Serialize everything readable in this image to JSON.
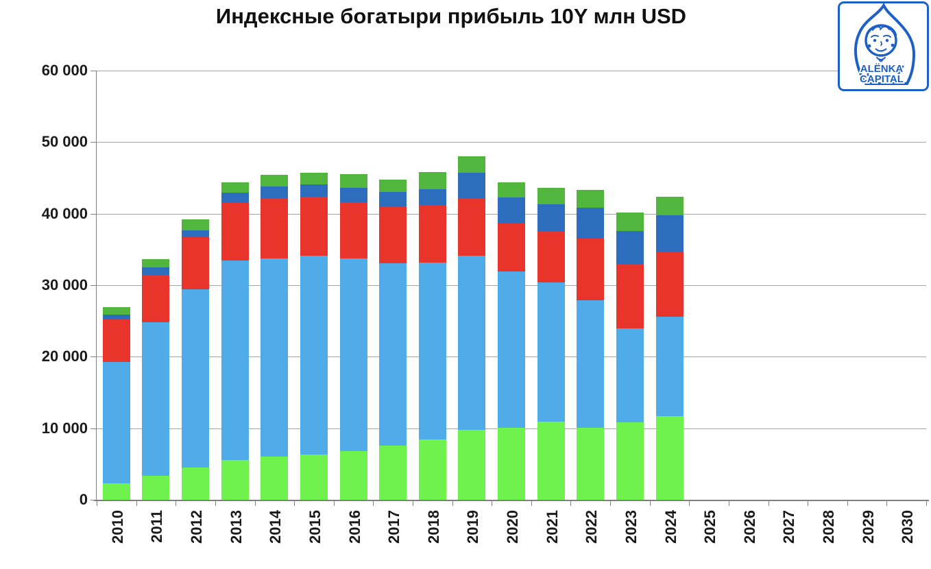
{
  "title": "Индексные богатыри прибыль 10Y млн USD",
  "logo": {
    "line1": "ALЁNKA",
    "line2": "CAPITAL",
    "color": "#1C5FC6"
  },
  "chart_data": {
    "type": "bar",
    "stacked": true,
    "title": "Индексные богатыри прибыль 10Y млн USD",
    "xlabel": "",
    "ylabel": "",
    "units": "млн USD",
    "categories": [
      "2010",
      "2011",
      "2012",
      "2013",
      "2014",
      "2015",
      "2016",
      "2017",
      "2018",
      "2019",
      "2020",
      "2021",
      "2022",
      "2023",
      "2024",
      "2025",
      "2026",
      "2027",
      "2028",
      "2029",
      "2030"
    ],
    "bars_present_for": [
      "2010",
      "2011",
      "2012",
      "2013",
      "2014",
      "2015",
      "2016",
      "2017",
      "2018",
      "2019",
      "2020",
      "2021",
      "2022",
      "2023",
      "2024"
    ],
    "series": [
      {
        "name": "green-bottom",
        "color": "#6FF24E",
        "values": [
          2300,
          3400,
          4500,
          5600,
          6000,
          6300,
          6800,
          7600,
          8400,
          9800,
          10100,
          10900,
          10100,
          10800,
          11700
        ]
      },
      {
        "name": "light-blue",
        "color": "#4FACE8",
        "values": [
          17000,
          21400,
          24900,
          27900,
          27700,
          27800,
          26900,
          25500,
          24800,
          24300,
          21800,
          19500,
          17800,
          13200,
          13900
        ]
      },
      {
        "name": "red",
        "color": "#E8342A",
        "values": [
          5900,
          6600,
          7300,
          8000,
          8500,
          8300,
          7900,
          7800,
          8000,
          8100,
          6700,
          7200,
          8600,
          9000,
          9000
        ]
      },
      {
        "name": "dark-blue",
        "color": "#2C6DBE",
        "values": [
          700,
          1100,
          1000,
          1400,
          1600,
          1700,
          2000,
          2100,
          2200,
          3500,
          3700,
          3700,
          4300,
          4600,
          5200
        ]
      },
      {
        "name": "green-top",
        "color": "#52B53E",
        "values": [
          1000,
          1100,
          1500,
          1500,
          1600,
          1600,
          1900,
          1800,
          2400,
          2300,
          2100,
          2300,
          2500,
          2600,
          2600
        ]
      }
    ],
    "totals": [
      26900,
      33600,
      39200,
      44400,
      45400,
      45700,
      45500,
      44800,
      45800,
      48000,
      44400,
      43600,
      43300,
      40200,
      42400
    ],
    "ylim": [
      0,
      60000
    ],
    "ytick_step": 10000,
    "ytick_labels": [
      "0",
      "10 000",
      "20 000",
      "30 000",
      "40 000",
      "50 000",
      "60 000"
    ],
    "grid": true,
    "legend": false
  }
}
